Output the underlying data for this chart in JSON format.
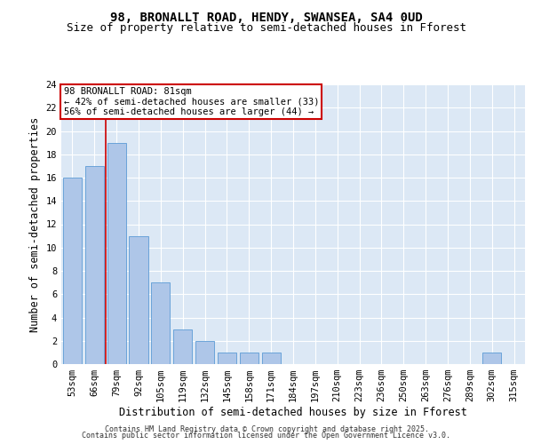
{
  "title": "98, BRONALLT ROAD, HENDY, SWANSEA, SA4 0UD",
  "subtitle": "Size of property relative to semi-detached houses in Fforest",
  "xlabel": "Distribution of semi-detached houses by size in Fforest",
  "ylabel": "Number of semi-detached properties",
  "categories": [
    "53sqm",
    "66sqm",
    "79sqm",
    "92sqm",
    "105sqm",
    "119sqm",
    "132sqm",
    "145sqm",
    "158sqm",
    "171sqm",
    "184sqm",
    "197sqm",
    "210sqm",
    "223sqm",
    "236sqm",
    "250sqm",
    "263sqm",
    "276sqm",
    "289sqm",
    "302sqm",
    "315sqm"
  ],
  "values": [
    16,
    17,
    19,
    11,
    7,
    3,
    2,
    1,
    1,
    1,
    0,
    0,
    0,
    0,
    0,
    0,
    0,
    0,
    0,
    1,
    0
  ],
  "bar_color": "#aec6e8",
  "bar_edge_color": "#5b9bd5",
  "vline_color": "#cc0000",
  "vline_xindex": 1.5,
  "annotation_title": "98 BRONALLT ROAD: 81sqm",
  "annotation_line2": "← 42% of semi-detached houses are smaller (33)",
  "annotation_line3": "56% of semi-detached houses are larger (44) →",
  "annotation_box_color": "#cc0000",
  "ylim": [
    0,
    24
  ],
  "yticks": [
    0,
    2,
    4,
    6,
    8,
    10,
    12,
    14,
    16,
    18,
    20,
    22,
    24
  ],
  "bg_color": "#dce8f5",
  "grid_color": "#ffffff",
  "footer_line1": "Contains HM Land Registry data © Crown copyright and database right 2025.",
  "footer_line2": "Contains public sector information licensed under the Open Government Licence v3.0.",
  "title_fontsize": 10,
  "subtitle_fontsize": 9,
  "label_fontsize": 8.5,
  "tick_fontsize": 7.5,
  "annotation_fontsize": 7.5,
  "footer_fontsize": 6.0
}
